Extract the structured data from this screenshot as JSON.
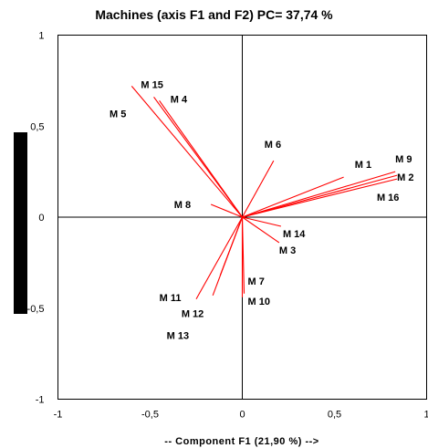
{
  "chart_data": {
    "type": "scatter",
    "subtype": "vector-loading-plot",
    "title": "Machines (axis F1 and F2) PC= 37,74 %",
    "xlabel": "-- Component F1 (21,90 %) -->",
    "ylabel": "",
    "xlim": [
      -1,
      1
    ],
    "ylim": [
      -1,
      1
    ],
    "xticks": [
      "-1",
      "-0,5",
      "0",
      "0,5",
      "1"
    ],
    "yticks": [
      "-1",
      "-0,5",
      "0",
      "0,5",
      "1"
    ],
    "grid": false,
    "legend": "none",
    "vector_color": "#ff0000",
    "points": [
      {
        "name": "M 1",
        "x": 0.55,
        "y": 0.22
      },
      {
        "name": "M 2",
        "x": 0.84,
        "y": 0.23
      },
      {
        "name": "M 3",
        "x": 0.2,
        "y": -0.14
      },
      {
        "name": "M 4",
        "x": -0.45,
        "y": 0.64
      },
      {
        "name": "M 5",
        "x": -0.6,
        "y": 0.72
      },
      {
        "name": "M 6",
        "x": 0.17,
        "y": 0.31
      },
      {
        "name": "M 7",
        "x": 0.01,
        "y": -0.42
      },
      {
        "name": "M 8",
        "x": -0.17,
        "y": 0.07
      },
      {
        "name": "M 9",
        "x": 0.83,
        "y": 0.25
      },
      {
        "name": "M 10",
        "x": 0.0,
        "y": -0.44
      },
      {
        "name": "M 11",
        "x": -0.25,
        "y": -0.45
      },
      {
        "name": "M 12",
        "x": -0.16,
        "y": -0.43
      },
      {
        "name": "M 13",
        "x": -0.12,
        "y": -0.32
      },
      {
        "name": "M 14",
        "x": 0.21,
        "y": -0.05
      },
      {
        "name": "M 15",
        "x": -0.48,
        "y": 0.66
      },
      {
        "name": "M 16",
        "x": 0.84,
        "y": 0.21
      }
    ],
    "label_positions": [
      {
        "name": "M 1",
        "x": 0.61,
        "y": 0.29
      },
      {
        "name": "M 2",
        "x": 0.84,
        "y": 0.22
      },
      {
        "name": "M 3",
        "x": 0.2,
        "y": -0.18
      },
      {
        "name": "M 4",
        "x": -0.39,
        "y": 0.65
      },
      {
        "name": "M 5",
        "x": -0.72,
        "y": 0.57
      },
      {
        "name": "M 6",
        "x": 0.12,
        "y": 0.4
      },
      {
        "name": "M 7",
        "x": 0.03,
        "y": -0.35
      },
      {
        "name": "M 8",
        "x": -0.37,
        "y": 0.07
      },
      {
        "name": "M 9",
        "x": 0.83,
        "y": 0.32
      },
      {
        "name": "M 10",
        "x": 0.03,
        "y": -0.46
      },
      {
        "name": "M 11",
        "x": -0.45,
        "y": -0.44
      },
      {
        "name": "M 12",
        "x": -0.33,
        "y": -0.53
      },
      {
        "name": "M 13",
        "x": -0.41,
        "y": -0.65
      },
      {
        "name": "M 14",
        "x": 0.22,
        "y": -0.09
      },
      {
        "name": "M 15",
        "x": -0.55,
        "y": 0.73
      },
      {
        "name": "M 16",
        "x": 0.73,
        "y": 0.11
      }
    ]
  }
}
